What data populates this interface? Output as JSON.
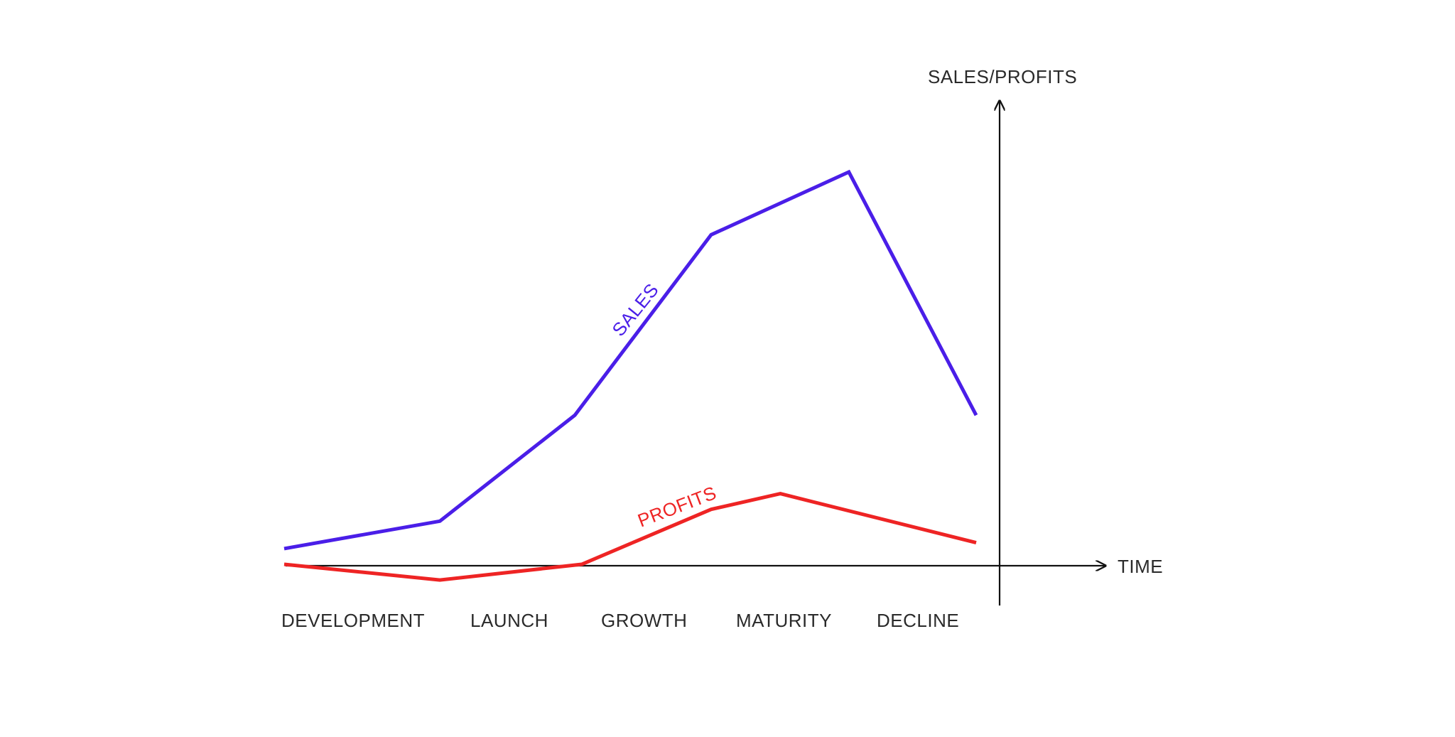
{
  "chart_data": {
    "type": "line",
    "axes": {
      "x_label": "TIME",
      "y_label": "SALES/PROFITS"
    },
    "categories": [
      "DEVELOPMENT",
      "LAUNCH",
      "GROWTH",
      "MATURITY",
      "DECLINE"
    ],
    "series": [
      {
        "name": "SALES",
        "color": "#4A1EE8",
        "points": [
          [
            0.0,
            0.04
          ],
          [
            0.225,
            0.11
          ],
          [
            0.42,
            0.38
          ],
          [
            0.617,
            0.84
          ],
          [
            0.816,
            1.0
          ],
          [
            1.0,
            0.38
          ]
        ]
      },
      {
        "name": "PROFITS",
        "color": "#EE2424",
        "points": [
          [
            0.0,
            0.0
          ],
          [
            0.225,
            -0.04
          ],
          [
            0.43,
            0.0
          ],
          [
            0.617,
            0.14
          ],
          [
            0.717,
            0.18
          ],
          [
            1.0,
            0.055
          ]
        ]
      }
    ]
  }
}
